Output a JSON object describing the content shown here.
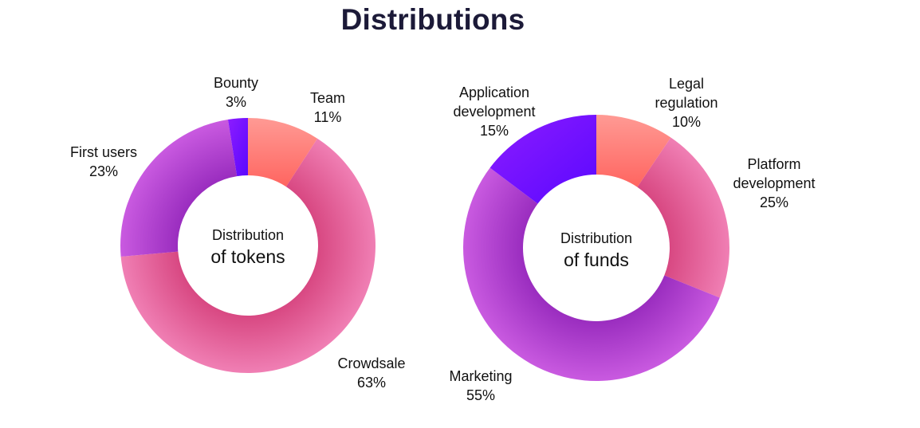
{
  "page": {
    "title": "Distributions"
  },
  "charts": {
    "tokens": {
      "center_line1": "Distribution",
      "center_line2": "of tokens",
      "slices": [
        {
          "name": "Team",
          "pct": "11%"
        },
        {
          "name": "Crowdsale",
          "pct": "63%"
        },
        {
          "name": "First users",
          "pct": "23%"
        },
        {
          "name": "Bounty",
          "pct": "3%"
        }
      ]
    },
    "funds": {
      "center_line1": "Distribution",
      "center_line2": "of funds",
      "slices": [
        {
          "name_line1": "Legal",
          "name_line2": "regulation",
          "pct": "10%"
        },
        {
          "name_line1": "Platform",
          "name_line2": "development",
          "pct": "25%"
        },
        {
          "name": "Marketing",
          "pct": "55%"
        },
        {
          "name_line1": "Application",
          "name_line2": "development",
          "pct": "15%"
        }
      ]
    }
  },
  "colors": {
    "title": "#1c1a38",
    "coral": "#ff6a6a",
    "pink": "#e0508a",
    "purple": "#a535c8",
    "violet": "#6a0dff"
  },
  "chart_data": [
    {
      "type": "pie",
      "title": "Distribution of tokens",
      "donut": true,
      "categories": [
        "Team",
        "Crowdsale",
        "First users",
        "Bounty"
      ],
      "values": [
        11,
        63,
        23,
        3
      ],
      "unit": "%",
      "legend": "none (labels placed around the ring)"
    },
    {
      "type": "pie",
      "title": "Distribution of funds",
      "donut": true,
      "categories": [
        "Legal regulation",
        "Platform development",
        "Marketing",
        "Application development"
      ],
      "values": [
        10,
        25,
        55,
        15
      ],
      "unit": "%",
      "legend": "none (labels placed around the ring)"
    }
  ]
}
